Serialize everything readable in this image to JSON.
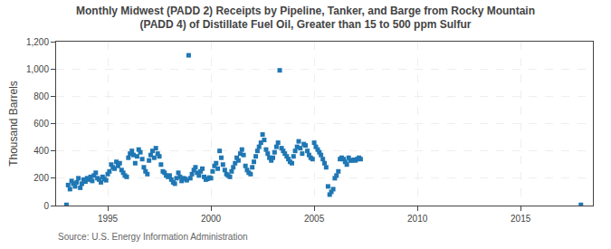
{
  "chart_data": {
    "type": "scatter",
    "title": "Monthly Midwest (PADD 2) Receipts by Pipeline, Tanker, and Barge from Rocky Mountain\n(PADD 4) of Distillate Fuel Oil, Greater than 15 to 500 ppm Sulfur",
    "ylabel": "Thousand Barrels",
    "annotations": [
      "Source: U.S. Energy Information Administration"
    ],
    "marker": "square",
    "grid": true,
    "xlim": [
      1992.5,
      2018.5
    ],
    "xticks": [
      1995,
      2000,
      2005,
      2010,
      2015
    ],
    "ylim": [
      0,
      1200
    ],
    "yticks": [
      0,
      200,
      400,
      600,
      800,
      {
        "value": 1000,
        "label": "1,000"
      },
      {
        "value": 1200,
        "label": "1,200"
      }
    ],
    "x": [
      1993.0,
      1993.08,
      1993.17,
      1993.25,
      1993.33,
      1993.42,
      1993.5,
      1993.58,
      1993.67,
      1993.75,
      1993.83,
      1993.92,
      1994.0,
      1994.08,
      1994.17,
      1994.25,
      1994.33,
      1994.42,
      1994.5,
      1994.58,
      1994.67,
      1994.75,
      1994.83,
      1994.92,
      1995.0,
      1995.08,
      1995.17,
      1995.25,
      1995.33,
      1995.42,
      1995.5,
      1995.58,
      1995.67,
      1995.75,
      1995.83,
      1995.92,
      1996.0,
      1996.08,
      1996.17,
      1996.25,
      1996.33,
      1996.42,
      1996.5,
      1996.58,
      1996.67,
      1996.75,
      1996.83,
      1996.92,
      1997.0,
      1997.08,
      1997.17,
      1997.25,
      1997.33,
      1997.42,
      1997.5,
      1997.58,
      1997.67,
      1997.75,
      1997.83,
      1997.92,
      1998.0,
      1998.08,
      1998.17,
      1998.25,
      1998.33,
      1998.42,
      1998.5,
      1998.58,
      1998.67,
      1998.75,
      1998.83,
      1998.92,
      1999.0,
      1999.08,
      1999.17,
      1999.25,
      1999.33,
      1999.42,
      1999.5,
      1999.58,
      1999.67,
      1999.75,
      1999.83,
      1999.92,
      2000.0,
      2000.08,
      2000.17,
      2000.25,
      2000.33,
      2000.42,
      2000.5,
      2000.58,
      2000.67,
      2000.75,
      2000.83,
      2000.92,
      2001.0,
      2001.08,
      2001.17,
      2001.25,
      2001.33,
      2001.42,
      2001.5,
      2001.58,
      2001.67,
      2001.75,
      2001.83,
      2001.92,
      2002.0,
      2002.08,
      2002.17,
      2002.25,
      2002.33,
      2002.42,
      2002.5,
      2002.58,
      2002.67,
      2002.75,
      2002.83,
      2002.92,
      2003.0,
      2003.08,
      2003.17,
      2003.25,
      2003.33,
      2003.42,
      2003.5,
      2003.58,
      2003.67,
      2003.75,
      2003.83,
      2003.92,
      2004.0,
      2004.08,
      2004.17,
      2004.25,
      2004.33,
      2004.42,
      2004.5,
      2004.58,
      2004.67,
      2004.75,
      2004.83,
      2004.92,
      2005.0,
      2005.08,
      2005.17,
      2005.25,
      2005.33,
      2005.42,
      2005.5,
      2005.58,
      2005.67,
      2005.75,
      2005.83,
      2005.92,
      2006.0,
      2006.08,
      2006.17,
      2006.25,
      2006.33,
      2006.42,
      2006.5,
      2006.58,
      2006.67,
      2006.75,
      2006.83,
      2006.92,
      2007.0,
      2007.08,
      2007.17,
      2007.25,
      2017.92
    ],
    "values": [
      5,
      150,
      120,
      180,
      160,
      140,
      170,
      200,
      130,
      160,
      190,
      175,
      200,
      190,
      210,
      180,
      220,
      240,
      200,
      190,
      170,
      210,
      195,
      185,
      230,
      250,
      300,
      280,
      270,
      320,
      290,
      310,
      260,
      240,
      220,
      210,
      350,
      380,
      400,
      370,
      310,
      360,
      410,
      390,
      340,
      280,
      250,
      230,
      330,
      370,
      400,
      350,
      420,
      380,
      360,
      300,
      250,
      240,
      220,
      210,
      220,
      190,
      170,
      160,
      200,
      240,
      210,
      180,
      200,
      195,
      185,
      1100,
      200,
      230,
      260,
      280,
      240,
      220,
      250,
      270,
      210,
      190,
      195,
      205,
      200,
      250,
      290,
      310,
      270,
      400,
      350,
      300,
      260,
      230,
      220,
      210,
      250,
      280,
      310,
      350,
      330,
      380,
      410,
      370,
      290,
      260,
      240,
      230,
      280,
      320,
      360,
      400,
      430,
      460,
      520,
      480,
      410,
      380,
      350,
      330,
      350,
      390,
      430,
      460,
      990,
      420,
      400,
      380,
      360,
      340,
      320,
      310,
      360,
      400,
      430,
      470,
      420,
      380,
      450,
      440,
      400,
      370,
      350,
      340,
      460,
      430,
      410,
      390,
      370,
      340,
      310,
      280,
      140,
      80,
      100,
      120,
      200,
      220,
      250,
      340,
      350,
      340,
      320,
      300,
      350,
      330,
      330,
      335,
      330,
      340,
      350,
      340,
      5
    ]
  }
}
